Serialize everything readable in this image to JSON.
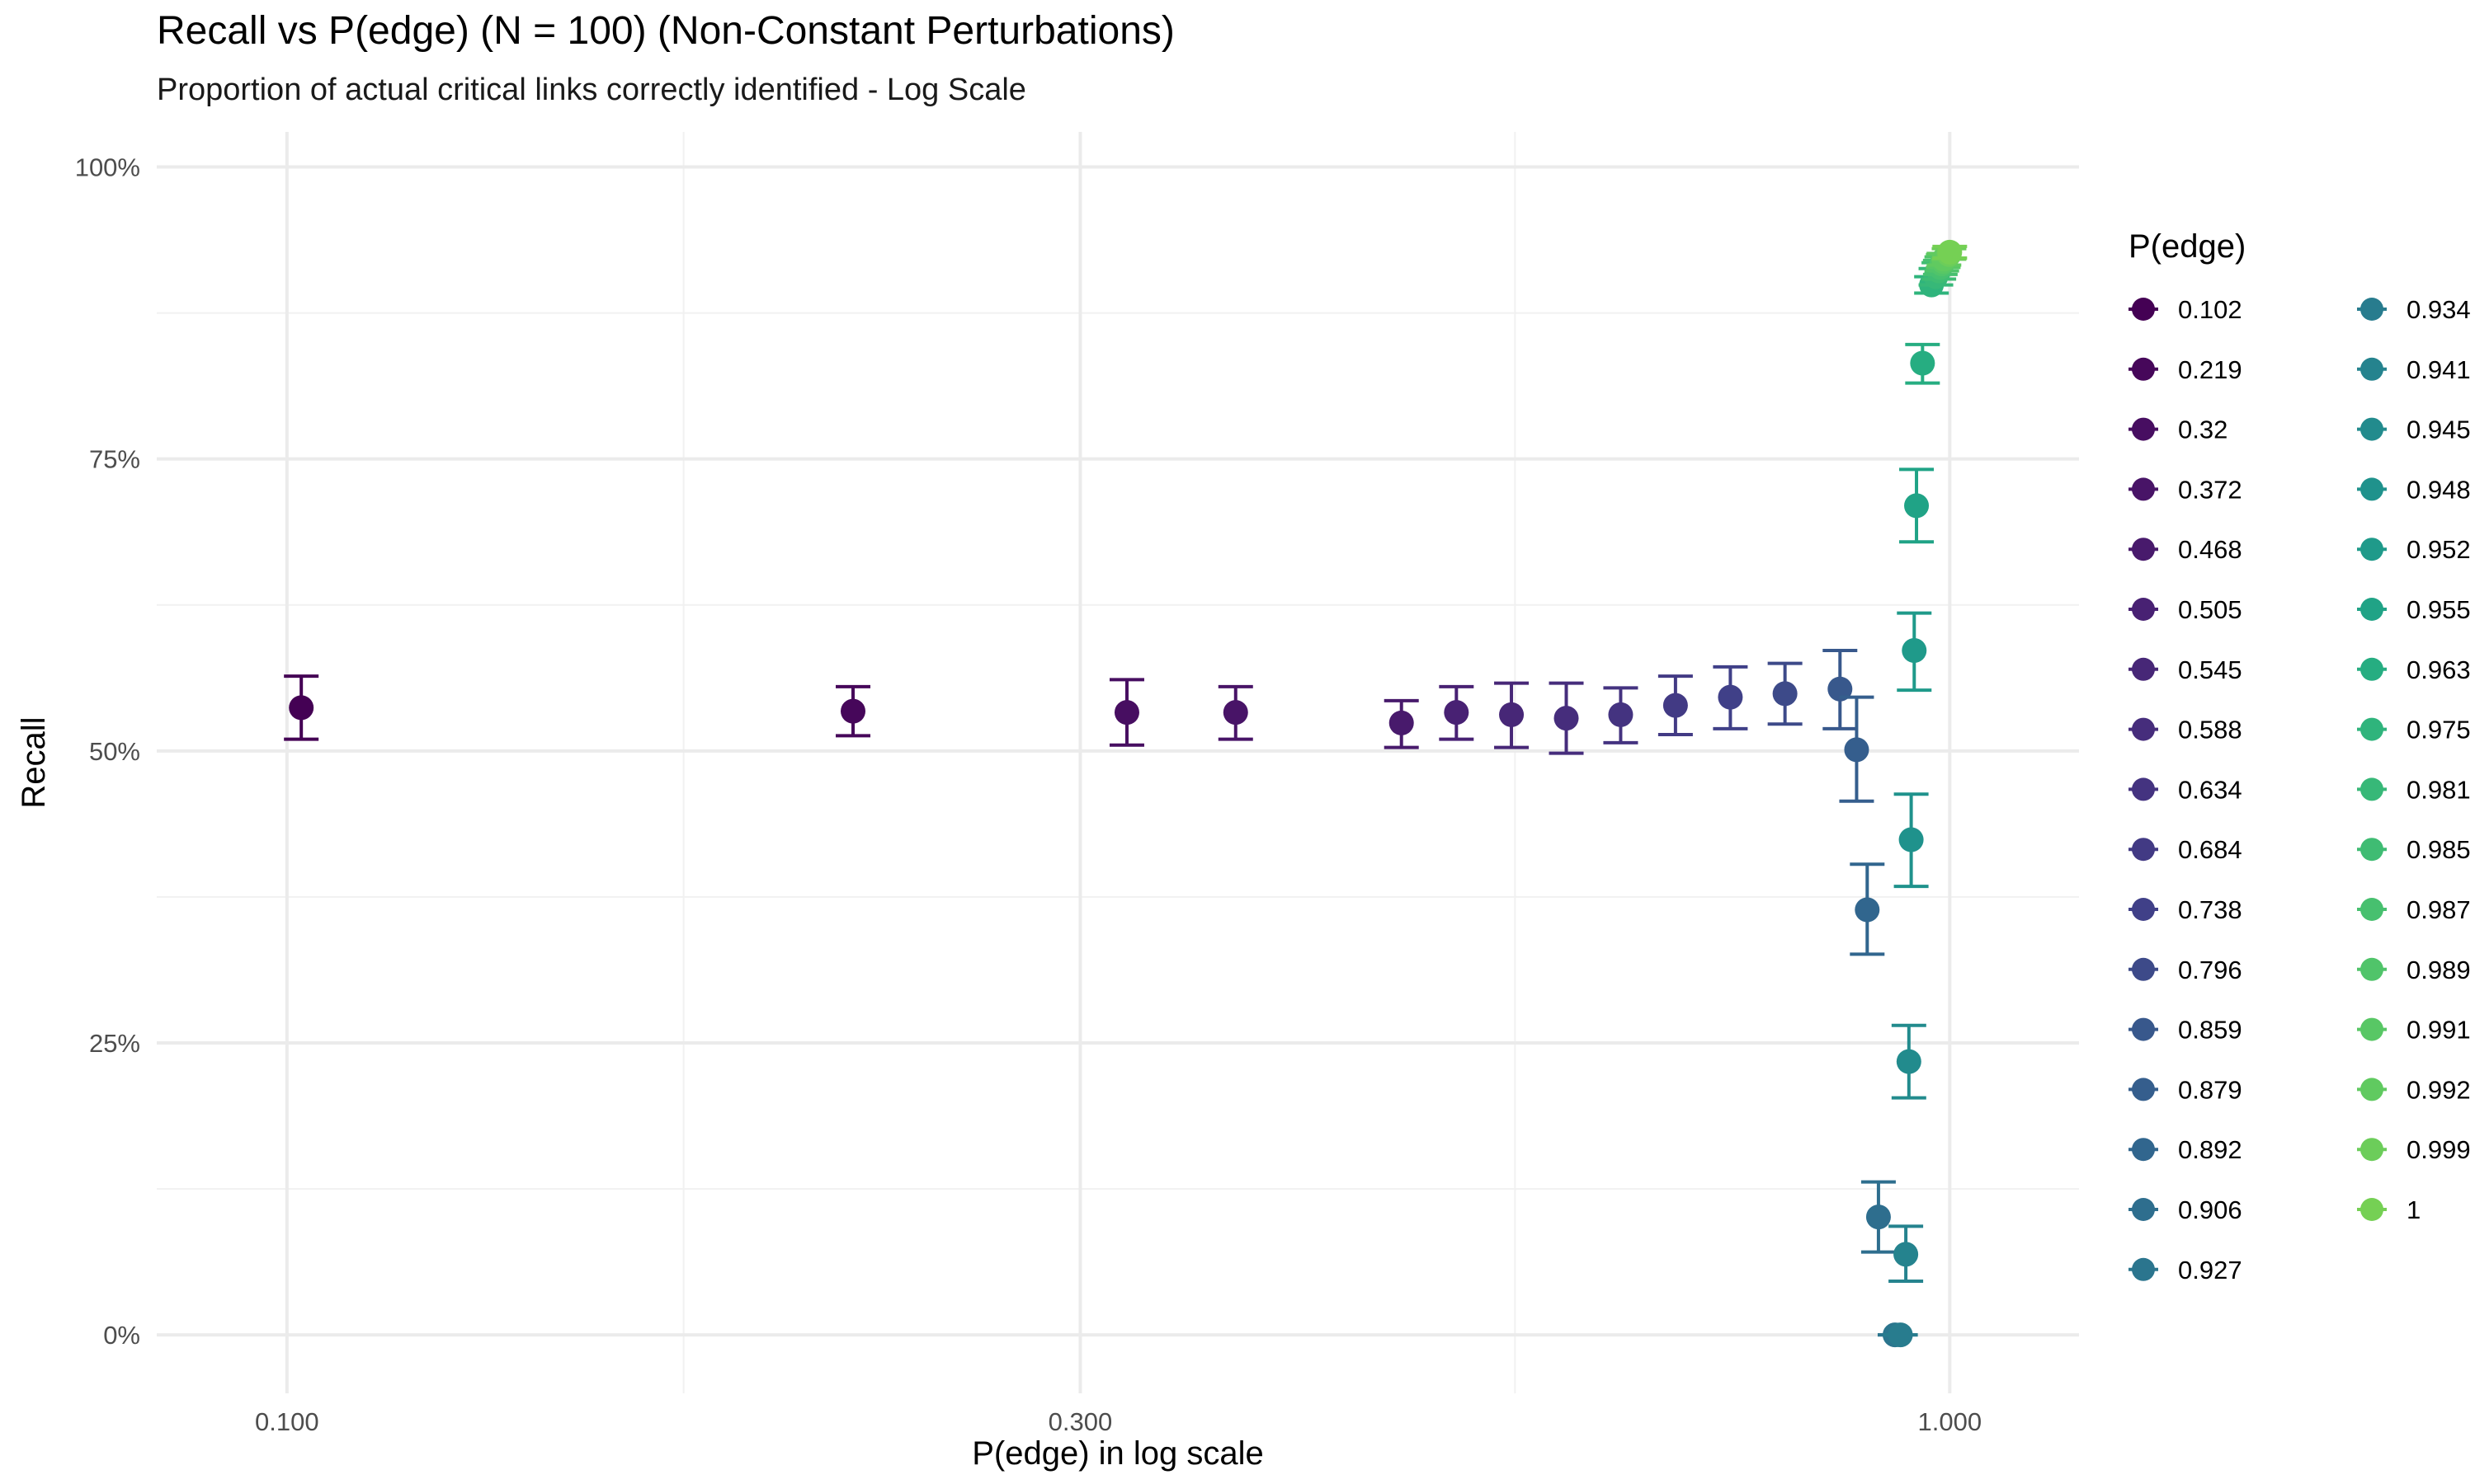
{
  "chart_data": {
    "type": "scatter",
    "title": "Recall vs P(edge) (N = 100) (Non-Constant Perturbations)",
    "subtitle": "Proportion of actual critical links correctly identified - Log Scale",
    "xlabel": "P(edge) in log scale",
    "ylabel": "Recall",
    "x_scale": "log10",
    "xlim": [
      0.0835,
      1.196
    ],
    "ylim": [
      -0.05,
      1.03
    ],
    "x_ticks": [
      0.1,
      0.3,
      1.0
    ],
    "x_tick_labels": [
      "0.100",
      "0.300",
      "1.000"
    ],
    "x_minor_gridlines": [
      0.1732,
      0.5477
    ],
    "y_ticks": [
      0,
      0.25,
      0.5,
      0.75,
      1.0
    ],
    "y_tick_labels": [
      "0%",
      "25%",
      "50%",
      "75%",
      "100%"
    ],
    "y_minor_gridlines": [
      0.125,
      0.375,
      0.625,
      0.875
    ],
    "grid": true,
    "legend": {
      "title": "P(edge)",
      "position": "right",
      "columns": 2
    },
    "color_scale": "viridis",
    "series": [
      {
        "name": "0.102",
        "x": 0.102,
        "y": 0.537,
        "ymin": 0.51,
        "ymax": 0.564,
        "color": "#440154"
      },
      {
        "name": "0.219",
        "x": 0.219,
        "y": 0.534,
        "ymin": 0.513,
        "ymax": 0.555,
        "color": "#46075a"
      },
      {
        "name": "0.32",
        "x": 0.32,
        "y": 0.533,
        "ymin": 0.505,
        "ymax": 0.561,
        "color": "#470e61"
      },
      {
        "name": "0.372",
        "x": 0.372,
        "y": 0.533,
        "ymin": 0.51,
        "ymax": 0.555,
        "color": "#481467"
      },
      {
        "name": "0.468",
        "x": 0.468,
        "y": 0.524,
        "ymin": 0.503,
        "ymax": 0.543,
        "color": "#481a6c"
      },
      {
        "name": "0.505",
        "x": 0.505,
        "y": 0.533,
        "ymin": 0.51,
        "ymax": 0.555,
        "color": "#482173"
      },
      {
        "name": "0.545",
        "x": 0.545,
        "y": 0.531,
        "ymin": 0.503,
        "ymax": 0.558,
        "color": "#472777"
      },
      {
        "name": "0.588",
        "x": 0.588,
        "y": 0.528,
        "ymin": 0.498,
        "ymax": 0.558,
        "color": "#462d7c"
      },
      {
        "name": "0.634",
        "x": 0.634,
        "y": 0.531,
        "ymin": 0.507,
        "ymax": 0.554,
        "color": "#443380"
      },
      {
        "name": "0.684",
        "x": 0.684,
        "y": 0.539,
        "ymin": 0.514,
        "ymax": 0.564,
        "color": "#423a84"
      },
      {
        "name": "0.738",
        "x": 0.738,
        "y": 0.546,
        "ymin": 0.519,
        "ymax": 0.572,
        "color": "#404088"
      },
      {
        "name": "0.796",
        "x": 0.796,
        "y": 0.549,
        "ymin": 0.523,
        "ymax": 0.575,
        "color": "#3d4a89"
      },
      {
        "name": "0.859",
        "x": 0.859,
        "y": 0.553,
        "ymin": 0.519,
        "ymax": 0.586,
        "color": "#38588c"
      },
      {
        "name": "0.879",
        "x": 0.879,
        "y": 0.501,
        "ymin": 0.457,
        "ymax": 0.546,
        "color": "#355e8d"
      },
      {
        "name": "0.892",
        "x": 0.892,
        "y": 0.364,
        "ymin": 0.326,
        "ymax": 0.403,
        "color": "#31668e"
      },
      {
        "name": "0.906",
        "x": 0.906,
        "y": 0.101,
        "ymin": 0.071,
        "ymax": 0.131,
        "color": "#2e6e8e"
      },
      {
        "name": "0.927",
        "x": 0.927,
        "y": 0.0,
        "ymin": 0.0,
        "ymax": 0.0,
        "color": "#2b758e"
      },
      {
        "name": "0.934",
        "x": 0.934,
        "y": 0.0,
        "ymin": 0.0,
        "ymax": 0.0,
        "color": "#287c8e"
      },
      {
        "name": "0.941",
        "x": 0.941,
        "y": 0.069,
        "ymin": 0.046,
        "ymax": 0.093,
        "color": "#25838e"
      },
      {
        "name": "0.945",
        "x": 0.945,
        "y": 0.234,
        "ymin": 0.203,
        "ymax": 0.265,
        "color": "#228b8d"
      },
      {
        "name": "0.948",
        "x": 0.948,
        "y": 0.424,
        "ymin": 0.384,
        "ymax": 0.463,
        "color": "#1f928c"
      },
      {
        "name": "0.952",
        "x": 0.952,
        "y": 0.586,
        "ymin": 0.552,
        "ymax": 0.618,
        "color": "#1f9a8a"
      },
      {
        "name": "0.955",
        "x": 0.955,
        "y": 0.71,
        "ymin": 0.679,
        "ymax": 0.741,
        "color": "#20a386"
      },
      {
        "name": "0.963",
        "x": 0.963,
        "y": 0.832,
        "ymin": 0.815,
        "ymax": 0.848,
        "color": "#26ad81"
      },
      {
        "name": "0.975",
        "x": 0.975,
        "y": 0.899,
        "ymin": 0.892,
        "ymax": 0.906,
        "color": "#2fb47c"
      },
      {
        "name": "0.981",
        "x": 0.981,
        "y": 0.906,
        "ymin": 0.899,
        "ymax": 0.913,
        "color": "#37b878"
      },
      {
        "name": "0.985",
        "x": 0.985,
        "y": 0.911,
        "ymin": 0.904,
        "ymax": 0.918,
        "color": "#3fbc73"
      },
      {
        "name": "0.987",
        "x": 0.987,
        "y": 0.914,
        "ymin": 0.908,
        "ymax": 0.92,
        "color": "#47c06f"
      },
      {
        "name": "0.989",
        "x": 0.989,
        "y": 0.917,
        "ymin": 0.911,
        "ymax": 0.923,
        "color": "#50c46a"
      },
      {
        "name": "0.991",
        "x": 0.991,
        "y": 0.919,
        "ymin": 0.914,
        "ymax": 0.925,
        "color": "#58c765"
      },
      {
        "name": "0.992",
        "x": 0.992,
        "y": 0.921,
        "ymin": 0.916,
        "ymax": 0.926,
        "color": "#60ca60"
      },
      {
        "name": "0.999",
        "x": 0.999,
        "y": 0.925,
        "ymin": 0.921,
        "ymax": 0.93,
        "color": "#6ccd5a"
      },
      {
        "name": "1",
        "x": 1.0,
        "y": 0.927,
        "ymin": 0.922,
        "ymax": 0.932,
        "color": "#75d054"
      }
    ]
  }
}
